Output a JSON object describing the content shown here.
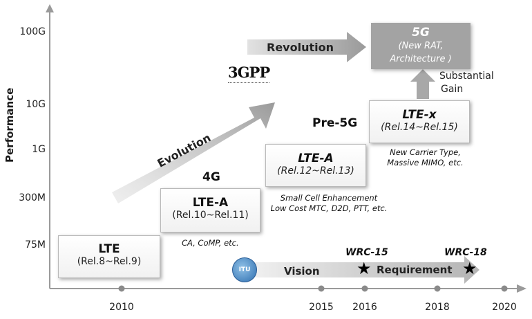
{
  "y_axis": {
    "title": "Performance",
    "ticks": [
      "100G",
      "10G",
      "1G",
      "300M",
      "75M"
    ]
  },
  "x_axis": {
    "ticks": [
      "2010",
      "2015",
      "2016",
      "2018",
      "2020"
    ]
  },
  "boxes": {
    "lte": {
      "title": "LTE",
      "releases": "(Rel.8~Rel.9)"
    },
    "lte_a_4g": {
      "title": "LTE-A",
      "releases": "(Rel.10~Rel.11)"
    },
    "lte_a_pre5g": {
      "title": "LTE-A",
      "releases": "(Rel.12~Rel.13)"
    },
    "lte_x": {
      "title": "LTE-x",
      "releases": "(Rel.14~Rel.15)"
    },
    "five_g": {
      "title": "5G",
      "line1": "(New RAT,",
      "line2": "Architecture )"
    }
  },
  "generation_labels": {
    "four_g": "4G",
    "pre_5g": "Pre-5G"
  },
  "notes": {
    "ca_comp": "CA, CoMP, etc.",
    "small_cell_1": "Small Cell Enhancement",
    "small_cell_2": "Low Cost MTC, D2D, PTT, etc.",
    "new_carrier_1": "New Carrier Type,",
    "new_carrier_2": "Massive MIMO, etc."
  },
  "arrows": {
    "evolution": "Evolution",
    "revolution": "Revolution",
    "vision": "Vision",
    "requirement": "Requirement",
    "gain_1": "Substantial",
    "gain_2": "Gain"
  },
  "milestones": {
    "wrc15": "WRC-15",
    "wrc18": "WRC-18"
  },
  "logos": {
    "threegpp": "3GPP",
    "itu": "ITU"
  },
  "colors": {
    "arrow": "#9a9a9a",
    "five_g_box": "#a3a3a3",
    "axis": "#9a9a9a"
  }
}
